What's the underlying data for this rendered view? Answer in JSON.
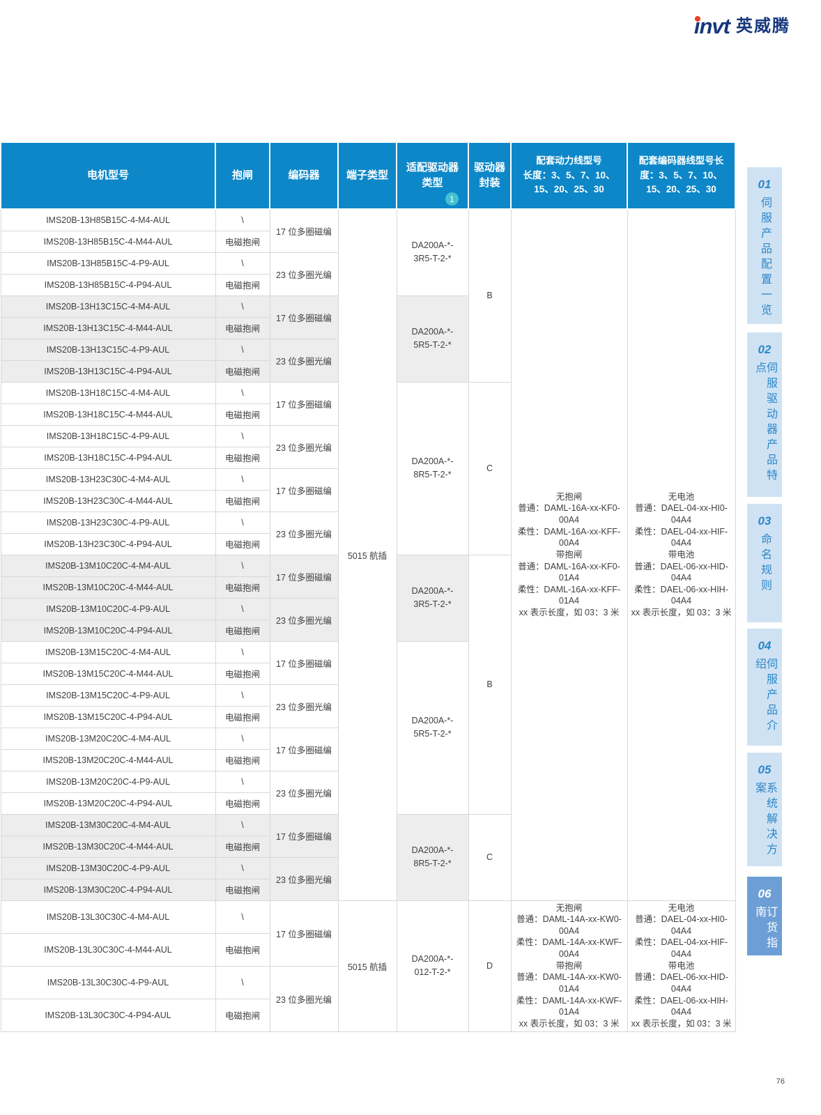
{
  "logo": {
    "text_en": "invt",
    "text_cn": "英威腾"
  },
  "page_number": "76",
  "colors": {
    "header_blue": "#0d87c8",
    "badge_teal": "#43c1d2",
    "row_gray": "#ededed",
    "tab_inactive_bg": "#cfe2f4",
    "tab_text_blue": "#2d87c6",
    "tab_active_bg": "#6d9fd6",
    "brand_navy": "#17377d",
    "brand_red": "#e8402a"
  },
  "header": {
    "columns": [
      "电机型号",
      "抱闸",
      "编码器",
      "端子类型",
      "适配驱动器\n类型",
      "驱动器\n封装",
      "配套动力线型号\n长度：3、5、7、10、\n15、20、25、30",
      "配套编码器线型号长\n度：3、5、7、10、\n15、20、25、30"
    ],
    "driver_type_badge": "1"
  },
  "sidebar": {
    "tabs": [
      {
        "num": "01",
        "label": "伺服产品配置一览",
        "active": false
      },
      {
        "num": "02",
        "label": "伺服驱动器产品特点",
        "active": false
      },
      {
        "num": "03",
        "label": "命名规则",
        "active": false
      },
      {
        "num": "04",
        "label": "伺服产品介绍",
        "active": false
      },
      {
        "num": "05",
        "label": "系统解决方案",
        "active": false
      },
      {
        "num": "06",
        "label": "订货指南",
        "active": true
      }
    ]
  },
  "table": {
    "gray_groups": [
      [
        4,
        8
      ],
      [
        16,
        20
      ],
      [
        28,
        32
      ]
    ],
    "rows": [
      {
        "model": "IMS20B-13H85B15C-4-M4-AUL",
        "brake": "\\"
      },
      {
        "model": "IMS20B-13H85B15C-4-M44-AUL",
        "brake": "电磁抱闸"
      },
      {
        "model": "IMS20B-13H85B15C-4-P9-AUL",
        "brake": "\\"
      },
      {
        "model": "IMS20B-13H85B15C-4-P94-AUL",
        "brake": "电磁抱闸"
      },
      {
        "model": "IMS20B-13H13C15C-4-M4-AUL",
        "brake": "\\"
      },
      {
        "model": "IMS20B-13H13C15C-4-M44-AUL",
        "brake": "电磁抱闸"
      },
      {
        "model": "IMS20B-13H13C15C-4-P9-AUL",
        "brake": "\\"
      },
      {
        "model": "IMS20B-13H13C15C-4-P94-AUL",
        "brake": "电磁抱闸"
      },
      {
        "model": "IMS20B-13H18C15C-4-M4-AUL",
        "brake": "\\"
      },
      {
        "model": "IMS20B-13H18C15C-4-M44-AUL",
        "brake": "电磁抱闸"
      },
      {
        "model": "IMS20B-13H18C15C-4-P9-AUL",
        "brake": "\\"
      },
      {
        "model": "IMS20B-13H18C15C-4-P94-AUL",
        "brake": "电磁抱闸"
      },
      {
        "model": "IMS20B-13H23C30C-4-M4-AUL",
        "brake": "\\"
      },
      {
        "model": "IMS20B-13H23C30C-4-M44-AUL",
        "brake": "电磁抱闸"
      },
      {
        "model": "IMS20B-13H23C30C-4-P9-AUL",
        "brake": "\\"
      },
      {
        "model": "IMS20B-13H23C30C-4-P94-AUL",
        "brake": "电磁抱闸"
      },
      {
        "model": "IMS20B-13M10C20C-4-M4-AUL",
        "brake": "\\"
      },
      {
        "model": "IMS20B-13M10C20C-4-M44-AUL",
        "brake": "电磁抱闸"
      },
      {
        "model": "IMS20B-13M10C20C-4-P9-AUL",
        "brake": "\\"
      },
      {
        "model": "IMS20B-13M10C20C-4-P94-AUL",
        "brake": "电磁抱闸"
      },
      {
        "model": "IMS20B-13M15C20C-4-M4-AUL",
        "brake": "\\"
      },
      {
        "model": "IMS20B-13M15C20C-4-M44-AUL",
        "brake": "电磁抱闸"
      },
      {
        "model": "IMS20B-13M15C20C-4-P9-AUL",
        "brake": "\\"
      },
      {
        "model": "IMS20B-13M15C20C-4-P94-AUL",
        "brake": "电磁抱闸"
      },
      {
        "model": "IMS20B-13M20C20C-4-M4-AUL",
        "brake": "\\"
      },
      {
        "model": "IMS20B-13M20C20C-4-M44-AUL",
        "brake": "电磁抱闸"
      },
      {
        "model": "IMS20B-13M20C20C-4-P9-AUL",
        "brake": "\\"
      },
      {
        "model": "IMS20B-13M20C20C-4-P94-AUL",
        "brake": "电磁抱闸"
      },
      {
        "model": "IMS20B-13M30C20C-4-M4-AUL",
        "brake": "\\"
      },
      {
        "model": "IMS20B-13M30C20C-4-M44-AUL",
        "brake": "电磁抱闸"
      },
      {
        "model": "IMS20B-13M30C20C-4-P9-AUL",
        "brake": "\\"
      },
      {
        "model": "IMS20B-13M30C20C-4-P94-AUL",
        "brake": "电磁抱闸"
      },
      {
        "model": "IMS20B-13L30C30C-4-M4-AUL",
        "brake": "\\"
      },
      {
        "model": "IMS20B-13L30C30C-4-M44-AUL",
        "brake": "电磁抱闸"
      },
      {
        "model": "IMS20B-13L30C30C-4-P9-AUL",
        "brake": "\\"
      },
      {
        "model": "IMS20B-13L30C30C-4-P94-AUL",
        "brake": "电磁抱闸"
      }
    ],
    "encoder_cells": [
      {
        "row": 0,
        "span": 2,
        "text": "17 位多圈磁编"
      },
      {
        "row": 2,
        "span": 2,
        "text": "23 位多圈光编"
      },
      {
        "row": 4,
        "span": 2,
        "text": "17 位多圈磁编"
      },
      {
        "row": 6,
        "span": 2,
        "text": "23 位多圈光编"
      },
      {
        "row": 8,
        "span": 2,
        "text": "17 位多圈磁编"
      },
      {
        "row": 10,
        "span": 2,
        "text": "23 位多圈光编"
      },
      {
        "row": 12,
        "span": 2,
        "text": "17 位多圈磁编"
      },
      {
        "row": 14,
        "span": 2,
        "text": "23 位多圈光编"
      },
      {
        "row": 16,
        "span": 2,
        "text": "17 位多圈磁编"
      },
      {
        "row": 18,
        "span": 2,
        "text": "23 位多圈光编"
      },
      {
        "row": 20,
        "span": 2,
        "text": "17 位多圈磁编"
      },
      {
        "row": 22,
        "span": 2,
        "text": "23 位多圈光编"
      },
      {
        "row": 24,
        "span": 2,
        "text": "17 位多圈磁编"
      },
      {
        "row": 26,
        "span": 2,
        "text": "23 位多圈光编"
      },
      {
        "row": 28,
        "span": 2,
        "text": "17 位多圈磁编"
      },
      {
        "row": 30,
        "span": 2,
        "text": "23 位多圈光编"
      },
      {
        "row": 32,
        "span": 2,
        "text": "17 位多圈磁编"
      },
      {
        "row": 34,
        "span": 2,
        "text": "23 位多圈光编"
      }
    ],
    "terminal_cells": [
      {
        "row": 0,
        "span": 32,
        "text": "5015 航插"
      },
      {
        "row": 32,
        "span": 4,
        "text": "5015 航插"
      }
    ],
    "driver_cells": [
      {
        "row": 0,
        "span": 4,
        "text": "DA200A-*-\n3R5-T-2-*"
      },
      {
        "row": 4,
        "span": 4,
        "text": "DA200A-*-\n5R5-T-2-*"
      },
      {
        "row": 8,
        "span": 8,
        "text": "DA200A-*-\n8R5-T-2-*"
      },
      {
        "row": 16,
        "span": 4,
        "text": "DA200A-*-\n3R5-T-2-*"
      },
      {
        "row": 20,
        "span": 8,
        "text": "DA200A-*-\n5R5-T-2-*"
      },
      {
        "row": 28,
        "span": 4,
        "text": "DA200A-*-\n8R5-T-2-*"
      },
      {
        "row": 32,
        "span": 4,
        "text": "DA200A-*-\n012-T-2-*"
      }
    ],
    "package_cells": [
      {
        "row": 0,
        "span": 8,
        "text": "B"
      },
      {
        "row": 8,
        "span": 8,
        "text": "C"
      },
      {
        "row": 16,
        "span": 12,
        "text": "B"
      },
      {
        "row": 28,
        "span": 4,
        "text": "C"
      },
      {
        "row": 32,
        "span": 4,
        "text": "D"
      }
    ],
    "power_cells": [
      {
        "row": 0,
        "span": 32,
        "text": "无抱闸\n普通：DAML-16A-xx-KF0-00A4\n柔性：DAML-16A-xx-KFF-00A4\n带抱闸\n普通：DAML-16A-xx-KF0-01A4\n柔性：DAML-16A-xx-KFF-01A4\nxx 表示长度，如 03：3 米"
      },
      {
        "row": 32,
        "span": 4,
        "text": "无抱闸\n普通：DAML-14A-xx-KW0-00A4\n柔性：DAML-14A-xx-KWF-00A4\n带抱闸\n普通：DAML-14A-xx-KW0-01A4\n柔性：DAML-14A-xx-KWF-01A4\nxx 表示长度，如 03：3 米"
      }
    ],
    "encoder_cable_cells": [
      {
        "row": 0,
        "span": 32,
        "text": "无电池\n普通：DAEL-04-xx-HI0-04A4\n柔性：DAEL-04-xx-HIF-04A4\n带电池\n普通：DAEL-06-xx-HID-04A4\n柔性：DAEL-06-xx-HIH-04A4\nxx 表示长度，如 03：3 米"
      },
      {
        "row": 32,
        "span": 4,
        "text": "无电池\n普通：DAEL-04-xx-HI0-04A4\n柔性：DAEL-04-xx-HIF-04A4\n带电池\n普通：DAEL-06-xx-HID-04A4\n柔性：DAEL-06-xx-HIH-04A4\nxx 表示长度，如 03：3 米"
      }
    ]
  }
}
